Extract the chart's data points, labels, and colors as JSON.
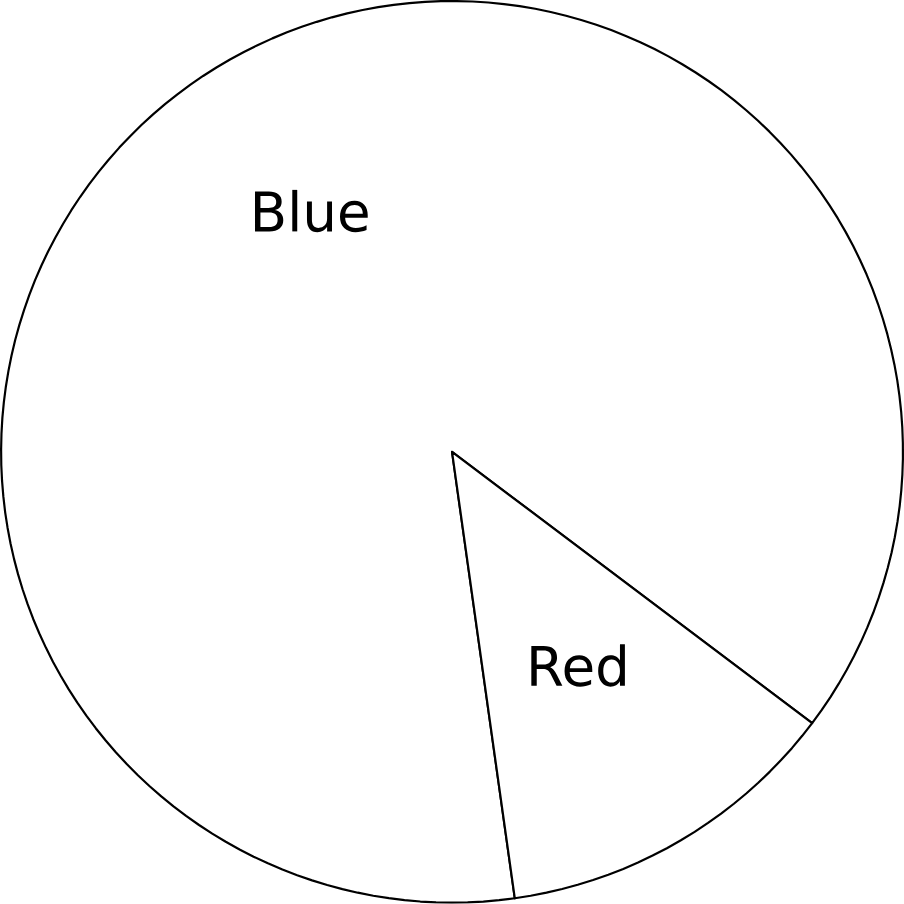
{
  "chart_data": {
    "type": "pie",
    "categories": [
      "Blue",
      "Red"
    ],
    "values": [
      87.5,
      12.5
    ],
    "colors": [
      "#ffffff",
      "#ffffff"
    ]
  }
}
